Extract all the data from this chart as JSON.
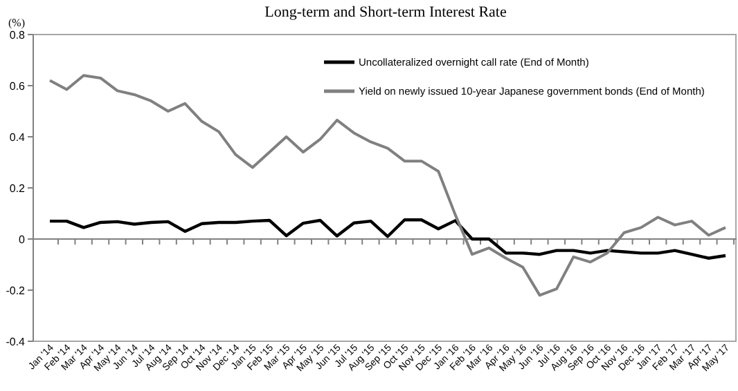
{
  "chart_data": {
    "type": "line",
    "title": "Long-term and Short-term Interest Rate",
    "ylabel": "(%)",
    "categories": [
      "Jan '14",
      "Feb '14",
      "Mar '14",
      "Apr '14",
      "May '14",
      "Jun '14",
      "Jul '14",
      "Aug '14",
      "Sep '14",
      "Oct '14",
      "Nov '14",
      "Dec '14",
      "Jan '15",
      "Feb '15",
      "Mar '15",
      "Apr '15",
      "May '15",
      "Jun '15",
      "Jul '15",
      "Aug '15",
      "Sep '15",
      "Oct '15",
      "Nov '15",
      "Dec '15",
      "Jan '16",
      "Feb '16",
      "Mar '16",
      "Apr '16",
      "May '16",
      "Jun '16",
      "Jul '16",
      "Aug '16",
      "Sep '16",
      "Oct '16",
      "Nov '16",
      "Dec '16",
      "Jan '17",
      "Feb '17",
      "Mar '17",
      "Apr '17",
      "May '17"
    ],
    "series": [
      {
        "name": "Uncollateralized overnight call rate (End of Month)",
        "color": "#000000",
        "values": [
          0.07,
          0.07,
          0.045,
          0.065,
          0.068,
          0.058,
          0.065,
          0.068,
          0.03,
          0.06,
          0.065,
          0.065,
          0.07,
          0.073,
          0.013,
          0.062,
          0.073,
          0.012,
          0.063,
          0.07,
          0.01,
          0.075,
          0.075,
          0.04,
          0.072,
          0.0,
          0.0,
          -0.055,
          -0.055,
          -0.06,
          -0.045,
          -0.045,
          -0.055,
          -0.045,
          -0.05,
          -0.055,
          -0.055,
          -0.045,
          -0.06,
          -0.075,
          -0.065
        ]
      },
      {
        "name": "Yield on newly issued 10-year Japanese government bonds (End of Month)",
        "color": "#808080",
        "values": [
          0.62,
          0.585,
          0.64,
          0.63,
          0.58,
          0.565,
          0.54,
          0.5,
          0.53,
          0.46,
          0.42,
          0.33,
          0.28,
          0.34,
          0.4,
          0.34,
          0.39,
          0.465,
          0.415,
          0.38,
          0.355,
          0.305,
          0.305,
          0.265,
          0.095,
          -0.06,
          -0.035,
          -0.075,
          -0.11,
          -0.22,
          -0.195,
          -0.07,
          -0.09,
          -0.055,
          0.025,
          0.045,
          0.085,
          0.055,
          0.07,
          0.015,
          0.045
        ]
      }
    ],
    "ylim": [
      -0.4,
      0.8
    ],
    "yticks": [
      {
        "value": -0.4,
        "label": "-0.4"
      },
      {
        "value": -0.2,
        "label": "-0.2"
      },
      0,
      {
        "value": 0.2,
        "label": "0.2"
      },
      {
        "value": 0.4,
        "label": "0.4"
      },
      {
        "value": 0.6,
        "label": "0.6"
      },
      {
        "value": 0.8,
        "label": "0.8"
      }
    ],
    "legend": "top right",
    "marker": "none",
    "line_style": "solid"
  }
}
